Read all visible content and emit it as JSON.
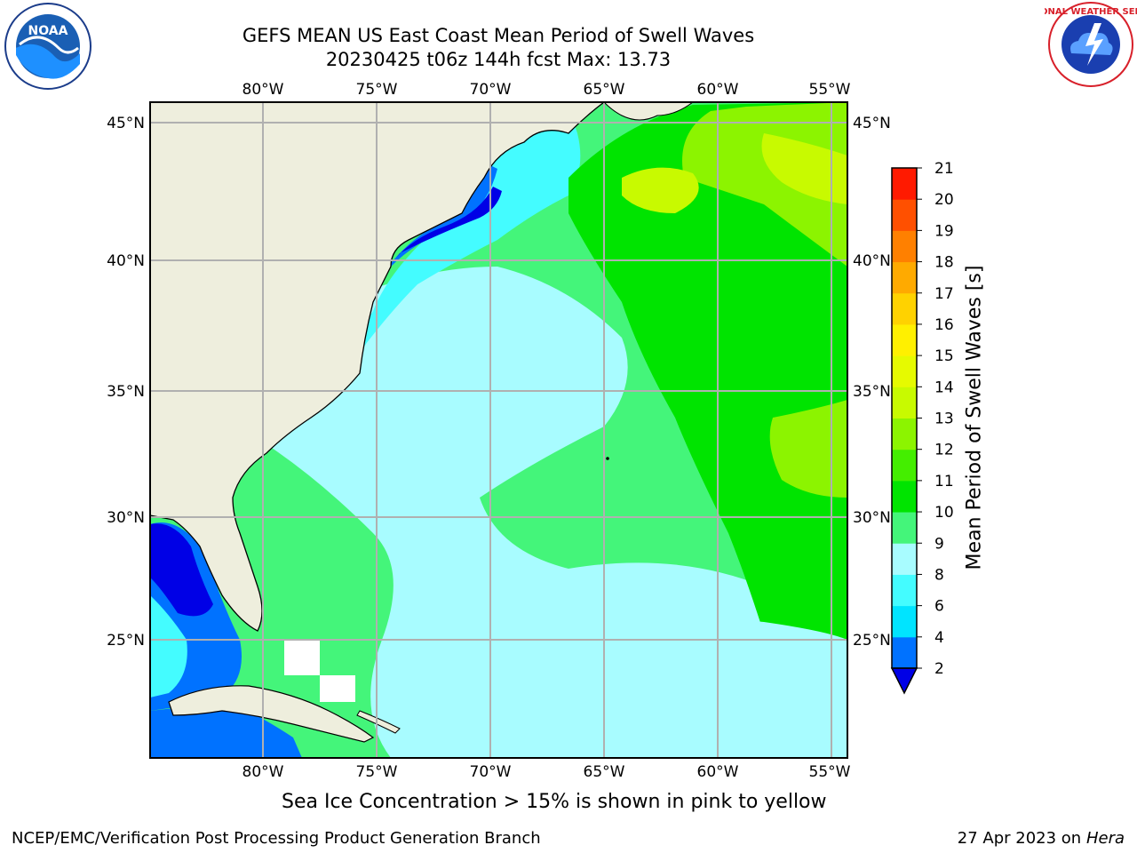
{
  "title": {
    "line1": "GEFS MEAN US East Coast Mean Period of Swell Waves",
    "line2": "20230425 t06z 144h fcst   Max: 13.73"
  },
  "map": {
    "lon_ticks_top": [
      "80°W",
      "75°W",
      "70°W",
      "65°W",
      "60°W",
      "55°W"
    ],
    "lon_ticks_bottom": [
      "80°W",
      "75°W",
      "70°W",
      "65°W",
      "60°W",
      "55°W"
    ],
    "lat_ticks_left": [
      "45°N",
      "40°N",
      "35°N",
      "30°N",
      "25°N"
    ],
    "lat_ticks_right": [
      "45°N",
      "40°N",
      "35°N",
      "30°N",
      "25°N"
    ],
    "extent": {
      "lon_min": -85,
      "lon_max": -54.3,
      "lat_min": 20.5,
      "lat_max": 46
    },
    "land_color": "#eeeedd",
    "grid_color": "#b0b0b0"
  },
  "colorbar": {
    "label": "Mean Period of Swell Waves [s]",
    "ticks": [
      "2",
      "4",
      "6",
      "8",
      "9",
      "10",
      "11",
      "12",
      "13",
      "14",
      "15",
      "16",
      "17",
      "18",
      "19",
      "20",
      "21"
    ],
    "colors": [
      "#0072ff",
      "#00e4ff",
      "#44fcff",
      "#a8fcff",
      "#44f57a",
      "#00e400",
      "#44ee00",
      "#8cf400",
      "#c8fa00",
      "#e6fa00",
      "#fff000",
      "#ffd200",
      "#ffaa00",
      "#ff8000",
      "#ff5000",
      "#ff1a00"
    ],
    "extend_color": "#0000e6"
  },
  "notes": {
    "sea_ice": "Sea Ice Concentration > 15% is shown in pink to yellow"
  },
  "footer": {
    "left": "NCEP/EMC/Verification Post Processing Product Generation Branch",
    "right_date": "27 Apr 2023 on ",
    "right_host": "Hera"
  },
  "logos": {
    "noaa_text": "NOAA",
    "nws_text": "NATIONAL WEATHER SERVICE"
  }
}
